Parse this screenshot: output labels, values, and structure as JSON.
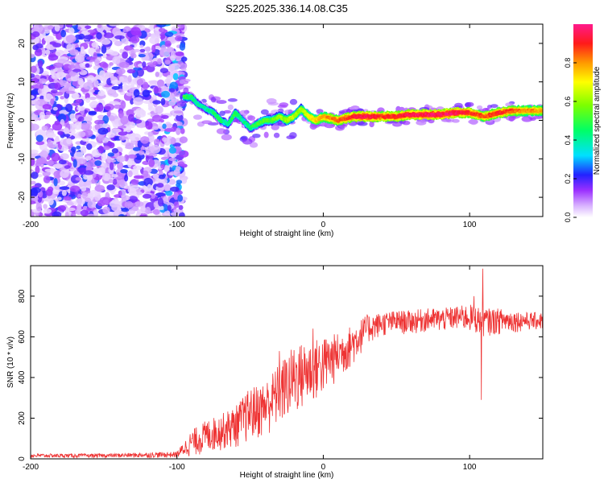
{
  "title": "S225.2025.336.14.08.C35",
  "colors": {
    "line": "#ee3333",
    "axis": "#000000",
    "spectral_low": "#d9b3ff",
    "spectral_mid": "#00e0ff",
    "spectral_high": "#ff1a1a"
  },
  "chart_data": [
    {
      "type": "heatmap",
      "name": "spectrogram",
      "title": "",
      "xlabel": "Height of straight line (km)",
      "ylabel": "Frequency (Hz)",
      "xlim": [
        -200,
        150
      ],
      "ylim": [
        -25,
        25
      ],
      "xticks": [
        {
          "value": -200,
          "label": "-200"
        },
        {
          "value": -100,
          "label": "-100"
        },
        {
          "value": 0,
          "label": "0"
        },
        {
          "value": 100,
          "label": "100"
        }
      ],
      "yticks": [
        {
          "value": -20,
          "label": "-20"
        },
        {
          "value": -10,
          "label": "-10"
        },
        {
          "value": 0,
          "label": "0"
        },
        {
          "value": 10,
          "label": "10"
        },
        {
          "value": 20,
          "label": "20"
        }
      ],
      "colorbar": {
        "label": "Normalized spectral amplitude",
        "range": [
          0,
          1
        ],
        "ticks": [
          {
            "value": 0.0,
            "label": "0.0"
          },
          {
            "value": 0.2,
            "label": "0.2"
          },
          {
            "value": 0.4,
            "label": "0.4"
          },
          {
            "value": 0.6,
            "label": "0.6"
          },
          {
            "value": 0.8,
            "label": "0.8"
          }
        ]
      },
      "noise_region_x": [
        -200,
        -95
      ],
      "ridge": {
        "x": [
          -95,
          -90,
          -85,
          -80,
          -75,
          -70,
          -65,
          -60,
          -55,
          -50,
          -45,
          -40,
          -35,
          -30,
          -25,
          -20,
          -15,
          -10,
          -5,
          0,
          10,
          20,
          30,
          40,
          50,
          60,
          70,
          80,
          90,
          100,
          110,
          120,
          130,
          140,
          150
        ],
        "freq": [
          6,
          6,
          4,
          3,
          2,
          0,
          -1,
          2,
          0,
          -2,
          -1,
          0,
          0,
          1,
          0,
          1,
          3,
          1,
          0,
          1,
          0,
          1,
          1,
          1,
          1,
          1.5,
          1.5,
          1.5,
          2,
          2,
          1,
          2,
          2.5,
          2.5,
          2.5
        ],
        "amplitude": [
          0.5,
          0.45,
          0.4,
          0.4,
          0.45,
          0.45,
          0.4,
          0.5,
          0.4,
          0.45,
          0.5,
          0.55,
          0.55,
          0.6,
          0.6,
          0.65,
          0.6,
          0.7,
          0.75,
          0.8,
          0.85,
          0.9,
          0.95,
          0.9,
          0.9,
          0.95,
          0.95,
          0.95,
          0.95,
          0.9,
          0.85,
          0.9,
          0.85,
          0.8,
          0.8
        ]
      }
    },
    {
      "type": "line",
      "name": "snr",
      "title": "",
      "xlabel": "Height of straight line (km)",
      "ylabel": "SNR (10 * v/v)",
      "xlim": [
        -200,
        150
      ],
      "ylim": [
        0,
        950
      ],
      "xticks": [
        {
          "value": -200,
          "label": "-200"
        },
        {
          "value": -100,
          "label": "-100"
        },
        {
          "value": 0,
          "label": "0"
        },
        {
          "value": 100,
          "label": "100"
        }
      ],
      "yticks": [
        {
          "value": 0,
          "label": "0"
        },
        {
          "value": 200,
          "label": "200"
        },
        {
          "value": 400,
          "label": "400"
        },
        {
          "value": 600,
          "label": "600"
        },
        {
          "value": 800,
          "label": "800"
        }
      ],
      "series": [
        {
          "name": "SNR",
          "envelope_x": [
            -200,
            -150,
            -100,
            -90,
            -80,
            -70,
            -60,
            -50,
            -40,
            -30,
            -20,
            -10,
            0,
            10,
            20,
            30,
            40,
            50,
            60,
            70,
            80,
            90,
            100,
            110,
            120,
            130,
            140,
            150
          ],
          "envelope_lo": [
            5,
            5,
            5,
            10,
            20,
            40,
            50,
            80,
            100,
            150,
            200,
            250,
            300,
            380,
            450,
            560,
            600,
            610,
            610,
            620,
            620,
            630,
            620,
            600,
            610,
            620,
            630,
            630
          ],
          "envelope_hi": [
            25,
            25,
            35,
            140,
            190,
            220,
            260,
            350,
            380,
            470,
            560,
            580,
            600,
            620,
            660,
            710,
            720,
            730,
            730,
            740,
            740,
            750,
            760,
            740,
            740,
            730,
            720,
            720
          ],
          "events": [
            {
              "x": 108,
              "y": 290
            },
            {
              "x": 109,
              "y": 935
            },
            {
              "x": 103,
              "y": 800
            },
            {
              "x": -30,
              "y": 530
            },
            {
              "x": -7,
              "y": 640
            }
          ]
        }
      ]
    }
  ]
}
